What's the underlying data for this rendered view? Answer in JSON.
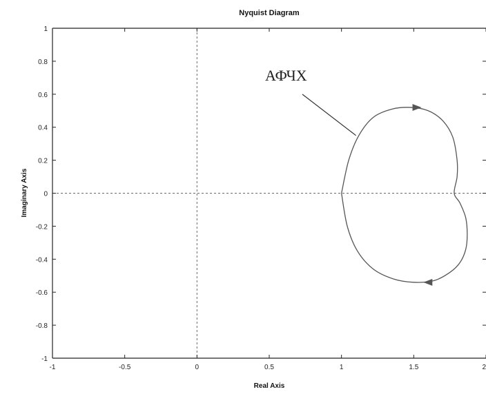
{
  "chart_data": {
    "type": "line",
    "title": "Nyquist Diagram",
    "xlabel": "Real Axis",
    "ylabel": "Imaginary Axis",
    "xlim": [
      -1,
      2
    ],
    "ylim": [
      -1,
      1
    ],
    "xticks": [
      -1,
      -0.5,
      0,
      0.5,
      1,
      1.5,
      2
    ],
    "xtick_labels": [
      "-1",
      "-0.5",
      "0",
      "0.5",
      "1",
      "1.5",
      "2"
    ],
    "yticks": [
      -1,
      -0.8,
      -0.6,
      -0.4,
      -0.2,
      0,
      0.2,
      0.4,
      0.6,
      0.8,
      1
    ],
    "ytick_labels": [
      "-1",
      "-0.8",
      "-0.6",
      "-0.4",
      "-0.2",
      "0",
      "0.2",
      "0.4",
      "0.6",
      "0.8",
      "1"
    ],
    "grid": false,
    "reference_lines": {
      "x": 0,
      "y": 0,
      "style": "dotted"
    },
    "series": [
      {
        "x": [
          1.0,
          1.05,
          1.12,
          1.22,
          1.35,
          1.48,
          1.6,
          1.7,
          1.77,
          1.8,
          1.8,
          1.78,
          1.82,
          1.86,
          1.87,
          1.86,
          1.82,
          1.75,
          1.64,
          1.5,
          1.36,
          1.22,
          1.11,
          1.04,
          1.0
        ],
        "y": [
          0.0,
          0.2,
          0.35,
          0.46,
          0.51,
          0.52,
          0.5,
          0.44,
          0.34,
          0.2,
          0.1,
          0.0,
          -0.06,
          -0.15,
          -0.25,
          -0.34,
          -0.42,
          -0.48,
          -0.53,
          -0.54,
          -0.52,
          -0.46,
          -0.35,
          -0.2,
          0.0
        ],
        "color": "#555555"
      }
    ],
    "arrows": [
      {
        "x": 1.52,
        "y": 0.52,
        "direction": "right"
      },
      {
        "x": 1.6,
        "y": -0.54,
        "direction": "left"
      }
    ],
    "annotations": [
      {
        "text": "АФЧХ",
        "x": 0.5,
        "y": 0.7,
        "points_to": [
          1.1,
          0.35
        ]
      }
    ]
  }
}
